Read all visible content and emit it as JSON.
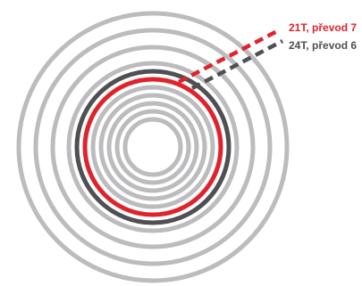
{
  "labels": {
    "red": "21T, převod 7",
    "dark": "24T, převod 6"
  },
  "colors": {
    "background": "#ffffff",
    "ring": "#bcbcbe",
    "highlight_red": "#e0232b",
    "highlight_dark": "#505052"
  },
  "rings": {
    "count": 11,
    "highlighted": [
      {
        "key": "dark",
        "index_from_inside": 7
      },
      {
        "key": "red",
        "index_from_inside": 6
      }
    ]
  }
}
